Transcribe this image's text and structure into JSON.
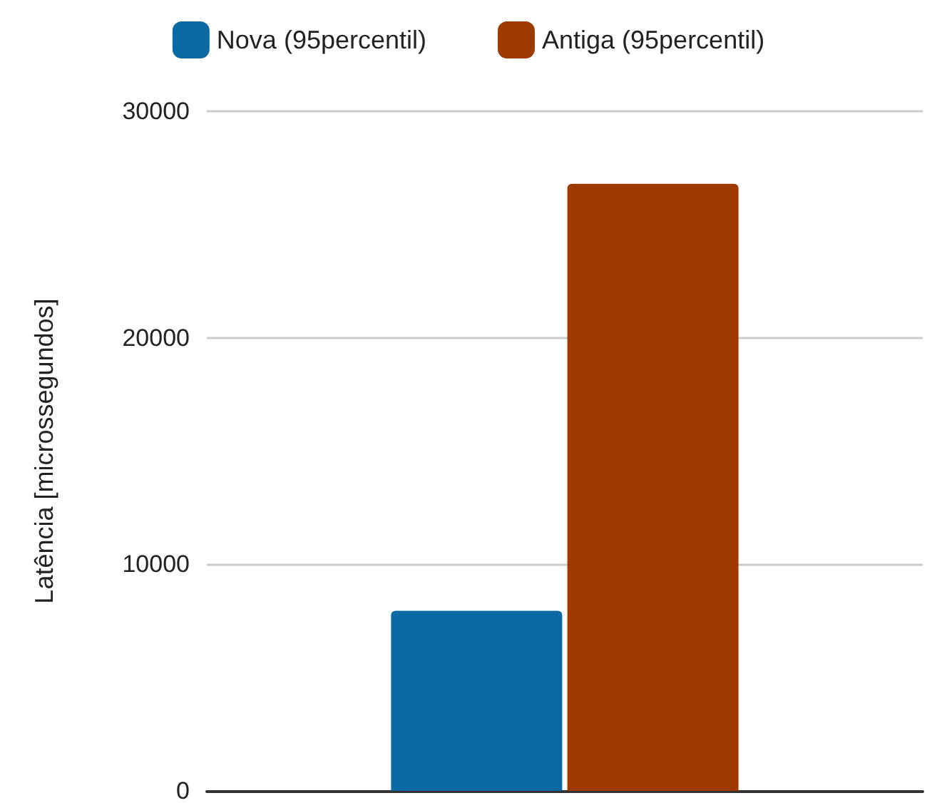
{
  "chart_data": {
    "type": "bar",
    "ylabel": "Latência [microssegundos]",
    "categories": [
      null
    ],
    "series": [
      {
        "name": "Nova (95percentil)",
        "color": "#0b69a3",
        "values": [
          7950
        ]
      },
      {
        "name": "Antiga (95percentil)",
        "color": "#9e3a00",
        "values": [
          26800
        ]
      }
    ],
    "ylim": [
      0,
      30000
    ],
    "yticks": [
      0,
      10000,
      20000,
      30000
    ],
    "grid": "y",
    "legend": "top"
  }
}
